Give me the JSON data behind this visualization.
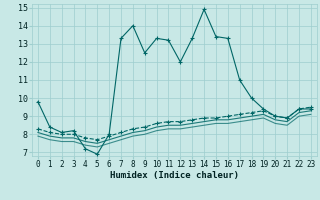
{
  "xlabel": "Humidex (Indice chaleur)",
  "xlim": [
    -0.5,
    23.5
  ],
  "ylim": [
    6.8,
    15.2
  ],
  "yticks": [
    7,
    8,
    9,
    10,
    11,
    12,
    13,
    14,
    15
  ],
  "xticks": [
    0,
    1,
    2,
    3,
    4,
    5,
    6,
    7,
    8,
    9,
    10,
    11,
    12,
    13,
    14,
    15,
    16,
    17,
    18,
    19,
    20,
    21,
    22,
    23
  ],
  "bg_color": "#c8e8e6",
  "grid_color": "#9ecece",
  "line_color": "#006666",
  "line1_y": [
    9.8,
    8.4,
    8.1,
    8.2,
    7.2,
    6.9,
    8.0,
    13.3,
    14.0,
    12.5,
    13.3,
    13.2,
    12.0,
    13.3,
    14.9,
    13.4,
    13.3,
    11.0,
    10.0,
    9.4,
    9.0,
    8.9,
    9.4,
    9.4
  ],
  "line2_y": [
    8.3,
    8.1,
    8.0,
    8.0,
    7.8,
    7.7,
    7.9,
    8.1,
    8.3,
    8.4,
    8.6,
    8.7,
    8.7,
    8.8,
    8.9,
    8.9,
    9.0,
    9.1,
    9.2,
    9.3,
    9.0,
    8.9,
    9.4,
    9.5
  ],
  "line3_y": [
    8.1,
    7.9,
    7.8,
    7.8,
    7.6,
    7.5,
    7.7,
    7.9,
    8.1,
    8.2,
    8.4,
    8.5,
    8.5,
    8.6,
    8.7,
    8.8,
    8.8,
    8.9,
    9.0,
    9.1,
    8.8,
    8.7,
    9.2,
    9.3
  ],
  "line4_y": [
    7.9,
    7.7,
    7.6,
    7.6,
    7.4,
    7.3,
    7.5,
    7.7,
    7.9,
    8.0,
    8.2,
    8.3,
    8.3,
    8.4,
    8.5,
    8.6,
    8.6,
    8.7,
    8.8,
    8.9,
    8.6,
    8.5,
    9.0,
    9.1
  ],
  "linewidth": 0.8,
  "marker": "+",
  "marker_size": 3.5,
  "tick_fontsize": 5.5,
  "label_fontsize": 6.5
}
